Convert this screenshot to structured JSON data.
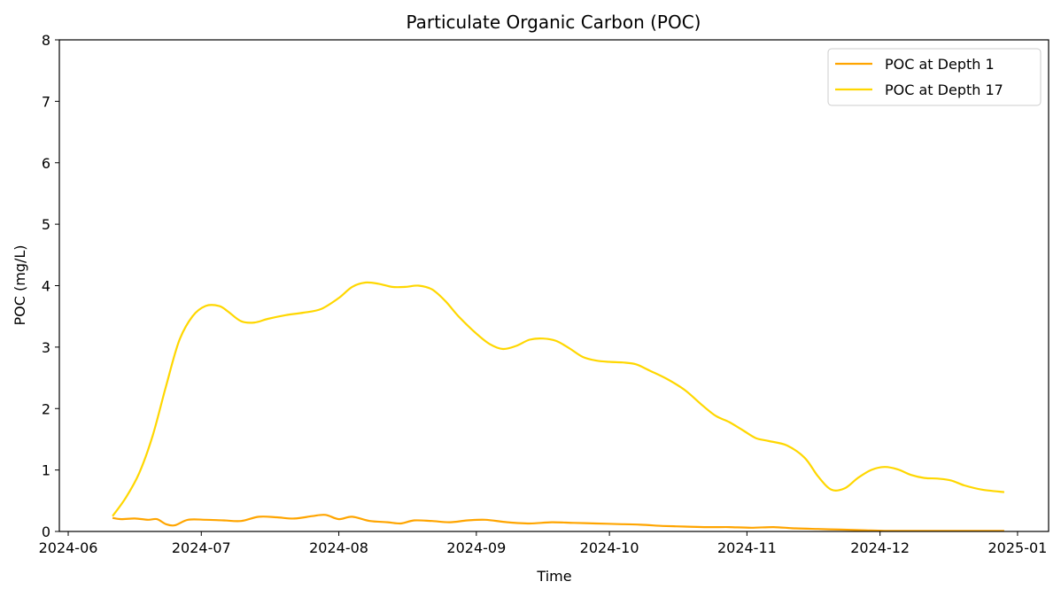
{
  "chart_data": {
    "type": "line",
    "title": "Particulate Organic Carbon (POC)",
    "xlabel": "Time",
    "ylabel": "POC (mg/L)",
    "xlim": [
      "2024-05-30",
      "2025-01-08"
    ],
    "ylim": [
      0,
      8
    ],
    "xticks": [
      "2024-06",
      "2024-07",
      "2024-08",
      "2024-09",
      "2024-10",
      "2024-11",
      "2024-12",
      "2025-01"
    ],
    "yticks": [
      "0",
      "1",
      "2",
      "3",
      "4",
      "5",
      "6",
      "7",
      "8"
    ],
    "grid": false,
    "legend_position": "top-right",
    "series": [
      {
        "name": "POC at Depth 1",
        "color": "#FFA500",
        "x": [
          "2024-06-11",
          "2024-06-13",
          "2024-06-16",
          "2024-06-19",
          "2024-06-21",
          "2024-06-23",
          "2024-06-25",
          "2024-06-28",
          "2024-07-02",
          "2024-07-06",
          "2024-07-10",
          "2024-07-14",
          "2024-07-18",
          "2024-07-22",
          "2024-07-26",
          "2024-07-29",
          "2024-08-01",
          "2024-08-04",
          "2024-08-08",
          "2024-08-12",
          "2024-08-15",
          "2024-08-18",
          "2024-08-22",
          "2024-08-26",
          "2024-08-30",
          "2024-09-03",
          "2024-09-08",
          "2024-09-13",
          "2024-09-18",
          "2024-09-23",
          "2024-09-28",
          "2024-10-03",
          "2024-10-08",
          "2024-10-13",
          "2024-10-18",
          "2024-10-23",
          "2024-10-28",
          "2024-11-02",
          "2024-11-07",
          "2024-11-12",
          "2024-11-17",
          "2024-11-22",
          "2024-11-27",
          "2024-12-02",
          "2024-12-08",
          "2024-12-14",
          "2024-12-20",
          "2024-12-25",
          "2024-12-29"
        ],
        "y": [
          0.22,
          0.2,
          0.21,
          0.19,
          0.2,
          0.12,
          0.1,
          0.19,
          0.19,
          0.18,
          0.17,
          0.24,
          0.23,
          0.21,
          0.25,
          0.27,
          0.2,
          0.24,
          0.17,
          0.15,
          0.13,
          0.18,
          0.17,
          0.15,
          0.18,
          0.19,
          0.15,
          0.13,
          0.15,
          0.14,
          0.13,
          0.12,
          0.11,
          0.09,
          0.08,
          0.07,
          0.07,
          0.06,
          0.07,
          0.05,
          0.04,
          0.03,
          0.02,
          0.01,
          0.01,
          0.01,
          0.01,
          0.01,
          0.01
        ]
      },
      {
        "name": "POC at Depth 17",
        "color": "#FFD700",
        "x": [
          "2024-06-11",
          "2024-06-14",
          "2024-06-17",
          "2024-06-20",
          "2024-06-23",
          "2024-06-26",
          "2024-06-29",
          "2024-07-02",
          "2024-07-05",
          "2024-07-07",
          "2024-07-10",
          "2024-07-13",
          "2024-07-16",
          "2024-07-20",
          "2024-07-24",
          "2024-07-28",
          "2024-08-01",
          "2024-08-04",
          "2024-08-07",
          "2024-08-10",
          "2024-08-13",
          "2024-08-16",
          "2024-08-19",
          "2024-08-22",
          "2024-08-25",
          "2024-08-28",
          "2024-09-01",
          "2024-09-04",
          "2024-09-07",
          "2024-09-10",
          "2024-09-13",
          "2024-09-16",
          "2024-09-19",
          "2024-09-22",
          "2024-09-25",
          "2024-09-28",
          "2024-10-01",
          "2024-10-04",
          "2024-10-07",
          "2024-10-10",
          "2024-10-14",
          "2024-10-18",
          "2024-10-22",
          "2024-10-25",
          "2024-10-28",
          "2024-10-31",
          "2024-11-03",
          "2024-11-06",
          "2024-11-10",
          "2024-11-14",
          "2024-11-17",
          "2024-11-20",
          "2024-11-23",
          "2024-11-26",
          "2024-11-29",
          "2024-12-02",
          "2024-12-05",
          "2024-12-08",
          "2024-12-11",
          "2024-12-14",
          "2024-12-17",
          "2024-12-20",
          "2024-12-24",
          "2024-12-29"
        ],
        "y": [
          0.25,
          0.55,
          0.95,
          1.55,
          2.35,
          3.1,
          3.5,
          3.67,
          3.67,
          3.58,
          3.42,
          3.4,
          3.46,
          3.52,
          3.56,
          3.62,
          3.8,
          3.98,
          4.05,
          4.03,
          3.98,
          3.98,
          4.0,
          3.94,
          3.75,
          3.5,
          3.22,
          3.05,
          2.97,
          3.02,
          3.12,
          3.14,
          3.1,
          2.98,
          2.84,
          2.78,
          2.76,
          2.75,
          2.72,
          2.62,
          2.48,
          2.3,
          2.05,
          1.88,
          1.78,
          1.65,
          1.52,
          1.47,
          1.4,
          1.2,
          0.9,
          0.68,
          0.7,
          0.87,
          1.0,
          1.05,
          1.01,
          0.92,
          0.87,
          0.86,
          0.83,
          0.75,
          0.68,
          0.64
        ]
      }
    ]
  }
}
